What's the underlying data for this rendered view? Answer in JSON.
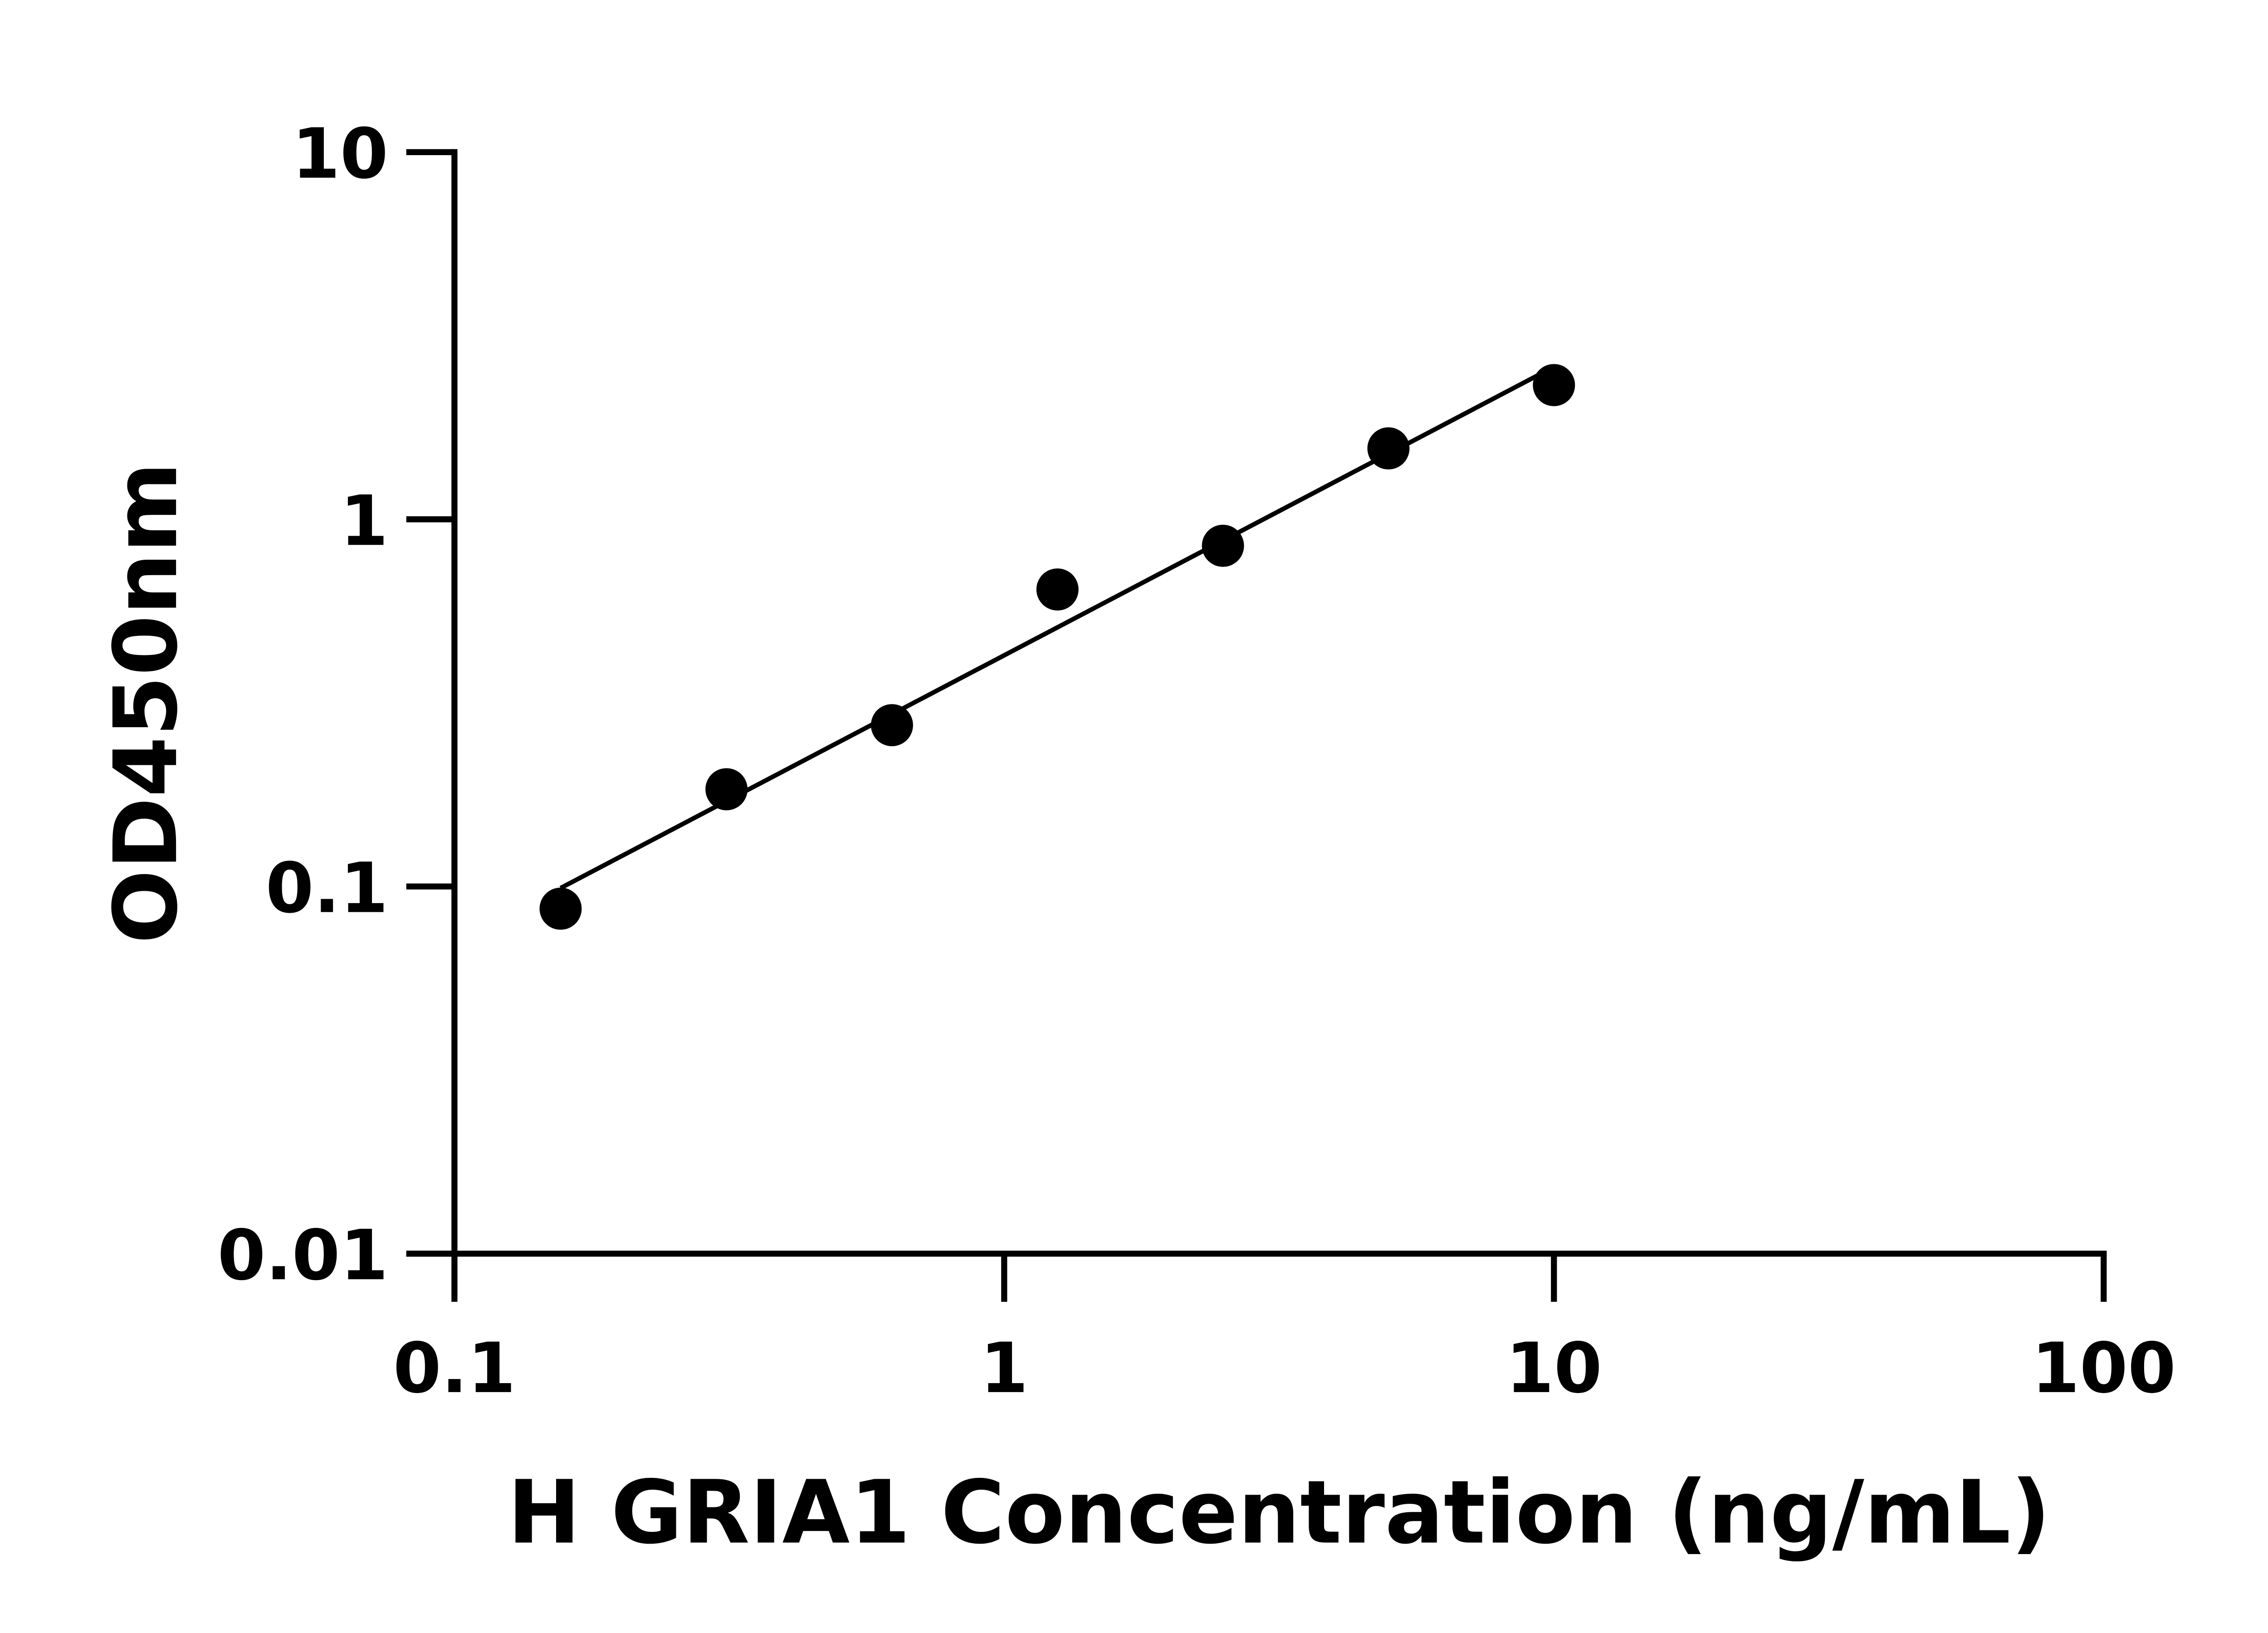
{
  "chart_data": {
    "type": "scatter",
    "title": "",
    "xlabel": "H GRIA1 Concentration (ng/mL)",
    "ylabel": "OD450nm",
    "x_scale": "log",
    "y_scale": "log",
    "xlim": [
      0.1,
      100
    ],
    "ylim": [
      0.01,
      10
    ],
    "x_ticks": [
      "0.1",
      "1",
      "10",
      "100"
    ],
    "y_ticks": [
      "0.01",
      "0.1",
      "1",
      "10"
    ],
    "grid": false,
    "fit_line": true,
    "point_color": "#000000",
    "x": [
      0.156,
      0.3125,
      0.625,
      1.25,
      2.5,
      5,
      10
    ],
    "y": [
      0.087,
      0.184,
      0.275,
      0.644,
      0.847,
      1.56,
      2.32
    ]
  }
}
